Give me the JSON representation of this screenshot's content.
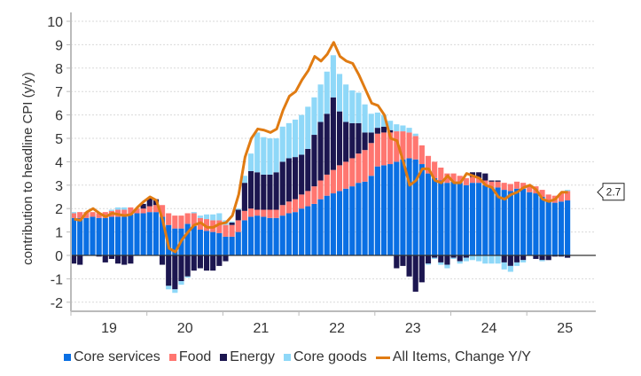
{
  "chart_data": {
    "type": "bar",
    "subtype": "stacked-bar-with-line",
    "title": "",
    "xlabel": "",
    "ylabel": "contribution to headline CPI (y/y)",
    "ylim": [
      -2,
      10
    ],
    "yticks": [
      -2,
      -1,
      0,
      1,
      2,
      3,
      4,
      5,
      6,
      7,
      8,
      9,
      10
    ],
    "xtick_labels": [
      "19",
      "20",
      "21",
      "22",
      "23",
      "24",
      "25"
    ],
    "x_start": "2019-01",
    "x_end": "2025-07",
    "frequency": "monthly",
    "grid": true,
    "legend_position": "bottom",
    "colors": {
      "Core services": "#0a6fe3",
      "Food": "#ff7670",
      "Energy": "#1c1650",
      "Core goods": "#8fd8f8",
      "All Items, Change Y/Y": "#e07b12"
    },
    "series": [
      {
        "name": "Core services",
        "kind": "bar",
        "values": [
          1.6,
          1.6,
          1.6,
          1.65,
          1.6,
          1.6,
          1.65,
          1.65,
          1.65,
          1.75,
          1.8,
          1.8,
          1.85,
          1.85,
          1.65,
          1.3,
          1.15,
          1.15,
          1.35,
          1.25,
          1.1,
          1.05,
          1.0,
          0.95,
          0.8,
          0.8,
          1.0,
          1.5,
          1.65,
          1.7,
          1.65,
          1.6,
          1.6,
          1.7,
          1.8,
          1.85,
          2.0,
          2.1,
          2.2,
          2.4,
          2.55,
          2.65,
          2.75,
          2.85,
          2.95,
          3.1,
          3.15,
          3.4,
          3.8,
          3.85,
          3.9,
          4.0,
          4.1,
          4.15,
          4.1,
          3.9,
          3.5,
          3.3,
          3.2,
          3.1,
          3.15,
          3.1,
          3.0,
          3.1,
          3.1,
          3.0,
          2.9,
          2.9,
          2.8,
          2.75,
          2.85,
          2.85,
          2.7,
          2.65,
          2.5,
          2.3,
          2.25,
          2.3,
          2.35
        ]
      },
      {
        "name": "Food",
        "kind": "bar",
        "values": [
          0.2,
          0.25,
          0.25,
          0.2,
          0.2,
          0.25,
          0.25,
          0.3,
          0.3,
          0.3,
          0.2,
          0.2,
          0.25,
          0.3,
          0.5,
          0.5,
          0.55,
          0.55,
          0.45,
          0.55,
          0.5,
          0.5,
          0.5,
          0.55,
          0.5,
          0.5,
          0.5,
          0.4,
          0.35,
          0.25,
          0.3,
          0.35,
          0.35,
          0.45,
          0.5,
          0.55,
          0.6,
          0.65,
          0.75,
          0.8,
          0.9,
          1.0,
          1.1,
          1.15,
          1.2,
          1.25,
          1.35,
          1.4,
          1.4,
          1.4,
          1.35,
          1.3,
          1.2,
          1.1,
          1.0,
          0.8,
          0.75,
          0.7,
          0.55,
          0.4,
          0.35,
          0.3,
          0.3,
          0.25,
          0.2,
          0.2,
          0.25,
          0.25,
          0.3,
          0.3,
          0.3,
          0.25,
          0.25,
          0.3,
          0.3,
          0.3,
          0.3,
          0.35,
          0.4
        ]
      },
      {
        "name": "Energy",
        "kind": "bar",
        "values": [
          -0.35,
          -0.4,
          0.0,
          0.0,
          -0.05,
          -0.3,
          -0.15,
          -0.35,
          -0.4,
          -0.35,
          0.0,
          0.2,
          0.35,
          0.25,
          -0.4,
          -1.3,
          -1.45,
          -1.1,
          -0.9,
          -0.65,
          -0.55,
          -0.65,
          -0.65,
          -0.45,
          -0.25,
          0.1,
          0.45,
          1.2,
          1.6,
          1.6,
          1.5,
          1.5,
          1.6,
          1.85,
          1.85,
          1.8,
          1.7,
          1.8,
          2.2,
          2.5,
          2.6,
          3.1,
          2.3,
          1.7,
          1.5,
          1.3,
          0.75,
          0.45,
          0.25,
          0.25,
          0.1,
          -0.55,
          -0.45,
          -0.9,
          -1.55,
          -1.15,
          -0.35,
          -0.1,
          -0.3,
          -0.4,
          -0.1,
          -0.25,
          -0.1,
          0.2,
          0.25,
          0.3,
          0.05,
          0.05,
          -0.3,
          -0.45,
          -0.3,
          -0.2,
          0.0,
          -0.15,
          -0.2,
          -0.2,
          -0.05,
          -0.05,
          -0.1
        ]
      },
      {
        "name": "Core goods",
        "kind": "bar",
        "values": [
          0.05,
          0.0,
          0.0,
          0.0,
          0.0,
          0.0,
          0.05,
          0.1,
          0.1,
          0.0,
          0.0,
          0.0,
          0.0,
          0.0,
          0.0,
          -0.15,
          -0.15,
          -0.15,
          -0.05,
          0.05,
          0.1,
          0.2,
          0.25,
          0.3,
          0.2,
          0.05,
          0.05,
          0.3,
          0.75,
          1.7,
          1.6,
          1.55,
          1.45,
          1.5,
          1.5,
          1.6,
          1.7,
          1.8,
          1.6,
          1.6,
          1.8,
          1.8,
          1.6,
          1.6,
          1.4,
          1.3,
          1.2,
          0.8,
          0.65,
          0.5,
          0.4,
          0.3,
          0.25,
          0.2,
          0.1,
          0.0,
          -0.05,
          -0.05,
          -0.1,
          -0.15,
          -0.05,
          -0.1,
          -0.15,
          -0.2,
          -0.25,
          -0.35,
          -0.35,
          -0.35,
          -0.3,
          -0.25,
          -0.15,
          -0.1,
          0.0,
          0.0,
          -0.05,
          0.0,
          0.0,
          0.0,
          0.05
        ]
      },
      {
        "name": "All Items, Change Y/Y",
        "kind": "line",
        "values": [
          1.55,
          1.5,
          1.85,
          2.0,
          1.8,
          1.65,
          1.8,
          1.75,
          1.7,
          1.75,
          2.05,
          2.3,
          2.5,
          2.35,
          1.5,
          0.3,
          0.15,
          0.65,
          1.0,
          1.3,
          1.4,
          1.2,
          1.2,
          1.35,
          1.4,
          1.7,
          2.6,
          4.2,
          5.0,
          5.4,
          5.35,
          5.25,
          5.4,
          6.2,
          6.8,
          7.0,
          7.5,
          7.9,
          8.5,
          8.3,
          8.6,
          9.1,
          8.5,
          8.3,
          8.2,
          7.7,
          7.1,
          6.5,
          6.4,
          6.0,
          5.0,
          4.9,
          4.0,
          3.0,
          3.2,
          3.7,
          3.7,
          3.2,
          3.1,
          3.4,
          3.1,
          3.1,
          3.5,
          3.4,
          3.3,
          3.0,
          2.9,
          2.5,
          2.4,
          2.6,
          2.7,
          2.9,
          3.0,
          2.8,
          2.4,
          2.3,
          2.4,
          2.7,
          2.7
        ]
      }
    ],
    "annotations": [
      {
        "text": "2.7",
        "target": "last value of All Items, Change Y/Y"
      }
    ]
  }
}
